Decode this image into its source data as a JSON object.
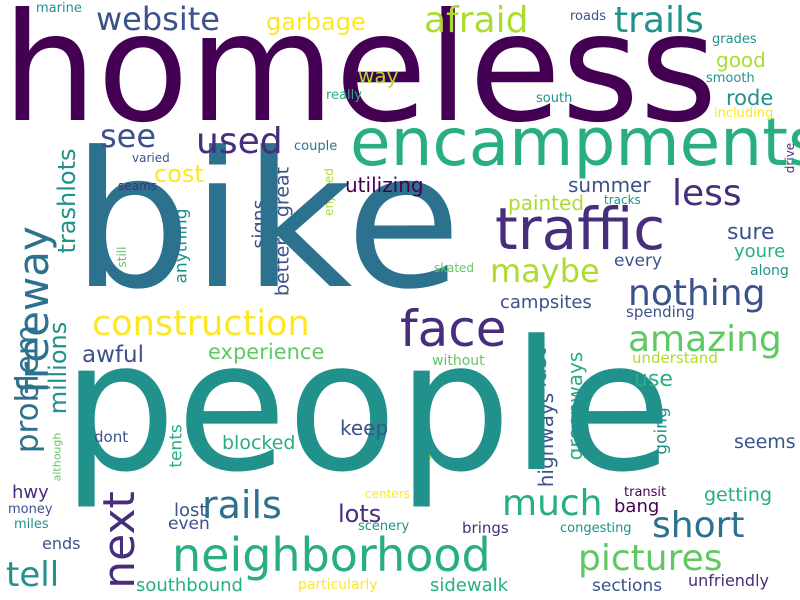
{
  "palette": {
    "purple": "#440154",
    "indigo": "#472d7b",
    "slate": "#3b528b",
    "steel": "#2c728e",
    "teal": "#21918c",
    "green": "#28ae80",
    "lime": "#5ec962",
    "yellowgreen": "#addc30",
    "yellow": "#fde725"
  },
  "words": {
    "homeless": "homeless",
    "bike": "bike",
    "people": "people",
    "encampments": "encampments",
    "traffic": "traffic",
    "neighborhood": "neighborhood",
    "face": "face",
    "trails": "trails",
    "afraid": "afraid",
    "website": "website",
    "construction": "construction",
    "nothing": "nothing",
    "rails": "rails",
    "pictures": "pictures",
    "much": "much",
    "short": "short",
    "next": "next",
    "tell": "tell",
    "amazing": "amazing",
    "maybe": "maybe",
    "less": "less",
    "see": "see",
    "used": "used",
    "freeway": "freeway",
    "problem": "problem",
    "garbage": "garbage",
    "cost": "cost",
    "awful": "awful",
    "experience": "experience",
    "utilizing": "utilizing",
    "lots": "lots",
    "millions": "millions",
    "trashlots": "trashlots",
    "summer": "summer",
    "sure": "sure",
    "painted": "painted",
    "signs": "signs",
    "better": "better",
    "great": "great",
    "campsites": "campsites",
    "blocked": "blocked",
    "keep": "keep",
    "use": "use",
    "last": "last",
    "greenways": "greenways",
    "highways": "highways",
    "seems": "seems",
    "going": "going",
    "bang": "bang",
    "getting": "getting",
    "rode": "rode",
    "good": "good",
    "way": "way",
    "youre": "youre",
    "every": "every",
    "dont": "dont",
    "hwy": "hwy",
    "tents": "tents",
    "lost": "lost",
    "even": "even",
    "ends": "ends",
    "southbound": "southbound",
    "sidewalk": "sidewalk",
    "sections": "sections",
    "unfriendly": "unfriendly",
    "spending": "spending",
    "understand": "understand",
    "gladstone": "gladstone",
    "without": "without",
    "anything": "anything",
    "transit": "transit",
    "brings": "brings",
    "congesting": "congesting",
    "scenery": "scenery",
    "particularly": "particularly",
    "money": "money",
    "miles": "miles",
    "centers": "centers",
    "although": "although",
    "marine": "marine",
    "roads": "roads",
    "grades": "grades",
    "smooth": "smooth",
    "including": "including",
    "south": "south",
    "really": "really",
    "couple": "couple",
    "varied": "varied",
    "seams": "seams",
    "enjoyed": "enjoyed",
    "tracks": "tracks",
    "drive": "drive",
    "still": "still",
    "skated": "skated",
    "along": "along"
  }
}
